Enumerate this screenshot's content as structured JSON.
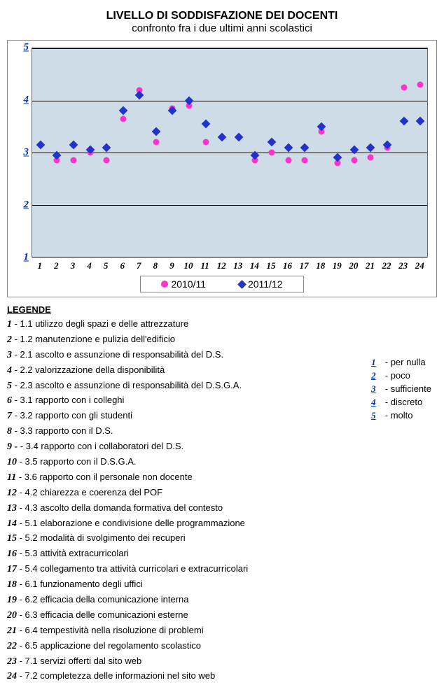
{
  "title": "LIVELLO DI SODDISFAZIONE DEI DOCENTI",
  "subtitle": "confronto fra i due ultimi anni scolastici",
  "chart": {
    "type": "scatter",
    "background_color": "#cddce6",
    "grid_color": "#000000",
    "ylim": [
      1,
      5
    ],
    "yticks": [
      1,
      2,
      3,
      4,
      5
    ],
    "xticks": [
      1,
      2,
      3,
      4,
      5,
      6,
      7,
      8,
      9,
      10,
      11,
      12,
      13,
      14,
      15,
      16,
      17,
      18,
      19,
      20,
      21,
      22,
      23,
      24
    ],
    "series": [
      {
        "name": "2010/11",
        "marker": "circle",
        "color": "#ff33cc",
        "values": [
          null,
          2.85,
          2.85,
          3.0,
          2.85,
          3.65,
          4.2,
          3.2,
          3.85,
          3.9,
          3.2,
          3.3,
          3.3,
          2.85,
          3.0,
          2.85,
          2.85,
          3.4,
          2.8,
          2.85,
          2.9,
          3.1,
          4.25,
          4.3
        ]
      },
      {
        "name": "2011/12",
        "marker": "diamond",
        "color": "#2233cc",
        "values": [
          3.15,
          2.95,
          3.15,
          3.05,
          3.1,
          3.8,
          4.1,
          3.4,
          3.8,
          4.0,
          3.55,
          3.3,
          3.3,
          2.95,
          3.2,
          3.1,
          3.1,
          3.5,
          2.9,
          3.05,
          3.1,
          3.15,
          3.6,
          3.6
        ]
      }
    ]
  },
  "legend_title": "LEGENDE",
  "items": [
    {
      "n": "1",
      "t": "1.1 utilizzo degli spazi e delle attrezzature"
    },
    {
      "n": "2",
      "t": "1.2 manutenzione e pulizia dell'edificio"
    },
    {
      "n": "3",
      "t": "2.1 ascolto e assunzione di responsabilità del D.S."
    },
    {
      "n": "4",
      "t": "2.2 valorizzazione della disponibilità"
    },
    {
      "n": "5",
      "t": "2.3 ascolto e assunzione di responsabilità del D.S.G.A."
    },
    {
      "n": "6",
      "t": "3.1 rapporto con i colleghi"
    },
    {
      "n": "7",
      "t": "3.2 rapporto con gli studenti"
    },
    {
      "n": "8",
      "t": "3.3 rapporto con il D.S."
    },
    {
      "n": "9 -",
      "t": "3.4 rapporto con i collaboratori del D.S."
    },
    {
      "n": "10",
      "t": "3.5 rapporto con il D.S.G.A."
    },
    {
      "n": "11",
      "t": "3.6 rapporto con il personale non docente"
    },
    {
      "n": "12",
      "t": "4.2 chiarezza e coerenza del POF"
    },
    {
      "n": "13",
      "t": "4.3 ascolto della domanda formativa del contesto"
    },
    {
      "n": "14",
      "t": "5.1 elaborazione e condivisione delle programmazione"
    },
    {
      "n": "15",
      "t": "5.2 modalità di svolgimento dei recuperi"
    },
    {
      "n": "16",
      "t": "5.3 attività extracurricolari"
    },
    {
      "n": "17",
      "t": "5.4 collegamento tra attività curricolari e extracurricolari"
    },
    {
      "n": "18",
      "t": "6.1 funzionamento degli uffici"
    },
    {
      "n": "19",
      "t": "6.2 efficacia della comunicazione interna"
    },
    {
      "n": "20",
      "t": "6.3 efficacia delle comunicazioni esterne"
    },
    {
      "n": "21",
      "t": "6.4 tempestività nella risoluzione di problemi"
    },
    {
      "n": "22",
      "t": "6.5 applicazione del regolamento scolastico"
    },
    {
      "n": "23",
      "t": "7.1 servizi offerti dal sito web"
    },
    {
      "n": "24",
      "t": "7.2 completezza delle informazioni nel sito web"
    }
  ],
  "scale": [
    {
      "n": "1",
      "t": "- per nulla"
    },
    {
      "n": "2",
      "t": "- poco"
    },
    {
      "n": "3",
      "t": "- sufficiente"
    },
    {
      "n": "4",
      "t": "- discreto"
    },
    {
      "n": "5",
      "t": "- molto"
    }
  ]
}
